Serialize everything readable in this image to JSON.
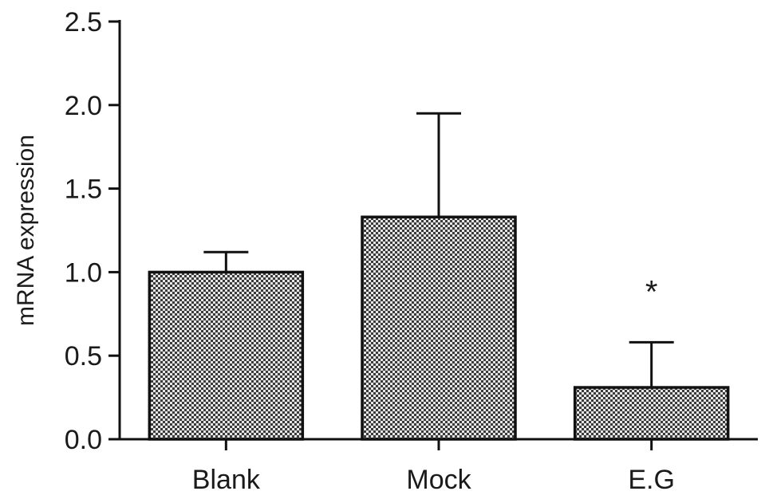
{
  "chart_data": {
    "type": "bar",
    "categories": [
      "Blank",
      "Mock",
      "E.G"
    ],
    "values": [
      1.0,
      1.33,
      0.31
    ],
    "error_upper": [
      1.12,
      1.95,
      0.58
    ],
    "annotations": [
      "",
      "",
      "*"
    ],
    "ylabel": "mRNA expression",
    "ylim": [
      0,
      2.5
    ],
    "yticks": [
      "0.0",
      "0.5",
      "1.0",
      "1.5",
      "2.0",
      "2.5"
    ],
    "grid": false,
    "bar_pattern": "checkered",
    "colors": {
      "fill_dark": "#3a3a3a",
      "fill_light": "#e6e6e6",
      "stroke": "#111111"
    }
  }
}
